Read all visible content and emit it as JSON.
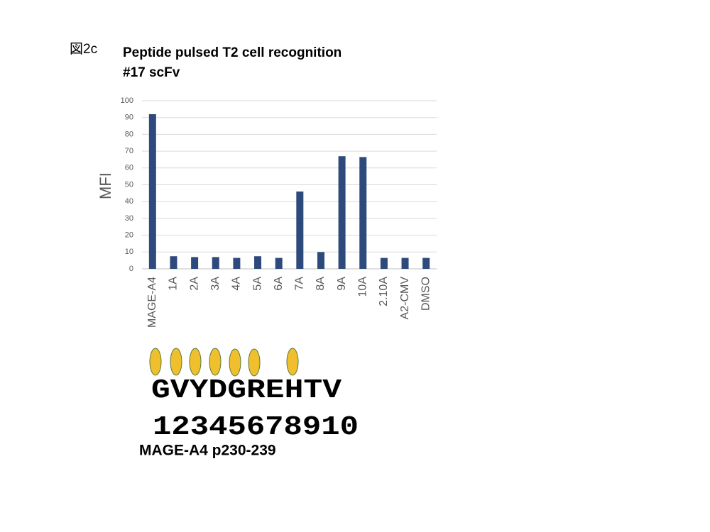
{
  "figure_label": "図2c",
  "chart_data": {
    "type": "bar",
    "title": "Peptide pulsed T2 cell recognition",
    "subtitle": "#17 scFv",
    "y_label": "MFI",
    "categories": [
      "MAGE-A4",
      "1A",
      "2A",
      "3A",
      "4A",
      "5A",
      "6A",
      "7A",
      "8A",
      "9A",
      "10A",
      "2.10A",
      "A2-CMV",
      "DMSO"
    ],
    "values": [
      92,
      7.5,
      7,
      7,
      6.5,
      7.5,
      6.5,
      46,
      10,
      67,
      66.5,
      6.5,
      6.5,
      6.5
    ],
    "color": "#2e4a7d",
    "ylim": [
      0,
      100
    ],
    "yticks": [
      0,
      10,
      20,
      30,
      40,
      50,
      60,
      70,
      80,
      90,
      100
    ],
    "grid": true
  },
  "peptide": {
    "sequence": "GVYDGREHTV",
    "positions": "12345678910",
    "caption": "MAGE-A4 p230-239"
  }
}
